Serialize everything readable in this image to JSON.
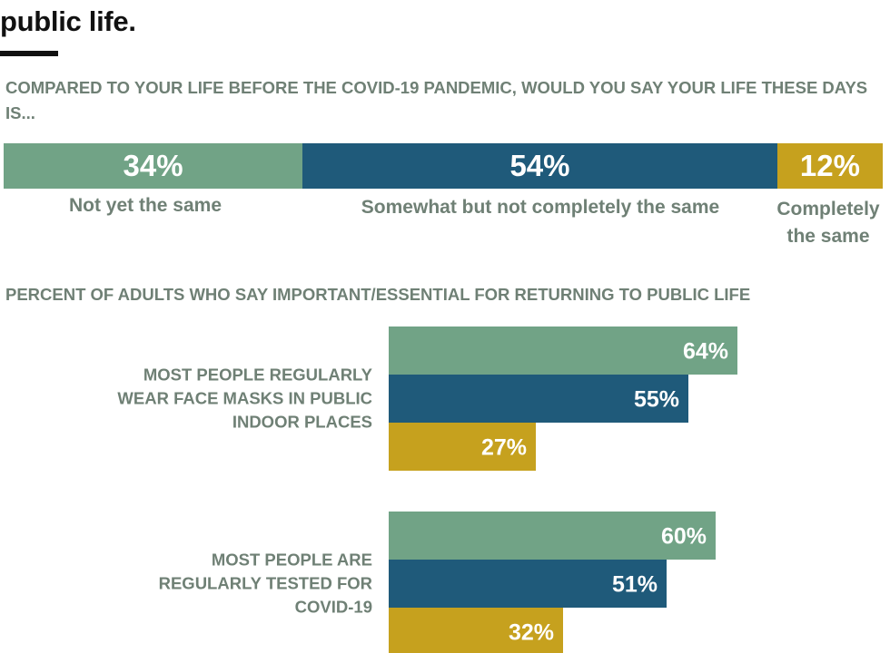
{
  "header": {
    "title": "public life."
  },
  "question1": {
    "title": "COMPARED TO YOUR LIFE BEFORE THE COVID-19 PANDEMIC, WOULD YOU SAY YOUR LIFE THESE DAYS IS..."
  },
  "question2": {
    "title": "PERCENT OF ADULTS WHO SAY IMPORTANT/ESSENTIAL FOR RETURNING TO PUBLIC LIFE"
  },
  "chart_data": [
    {
      "type": "bar",
      "stacked": true,
      "orientation": "horizontal",
      "title": "COMPARED TO YOUR LIFE BEFORE THE COVID-19 PANDEMIC, WOULD YOU SAY YOUR LIFE THESE DAYS IS...",
      "unit": "%",
      "segments": [
        {
          "category": "Not yet the same",
          "value": 34,
          "label": "34%",
          "color": "#71a386"
        },
        {
          "category": "Somewhat but not completely the same",
          "value": 54,
          "label": "54%",
          "color": "#1f5a7a"
        },
        {
          "category": "Completely the same",
          "value": 12,
          "label": "12%",
          "color": "#c6a11e"
        }
      ]
    },
    {
      "type": "bar",
      "orientation": "horizontal",
      "title": "PERCENT OF ADULTS WHO SAY IMPORTANT/ESSENTIAL FOR RETURNING TO PUBLIC LIFE",
      "unit": "%",
      "colors": [
        "#71a386",
        "#1f5a7a",
        "#c6a11e"
      ],
      "groups": [
        {
          "label": "MOST PEOPLE REGULARLY WEAR FACE MASKS IN PUBLIC INDOOR PLACES",
          "values": [
            64,
            55,
            27
          ],
          "labels": [
            "64%",
            "55%",
            "27%"
          ]
        },
        {
          "label": "MOST PEOPLE ARE REGULARLY TESTED FOR COVID-19",
          "values": [
            60,
            51,
            32
          ],
          "labels": [
            "60%",
            "51%",
            "32%"
          ]
        }
      ]
    }
  ]
}
